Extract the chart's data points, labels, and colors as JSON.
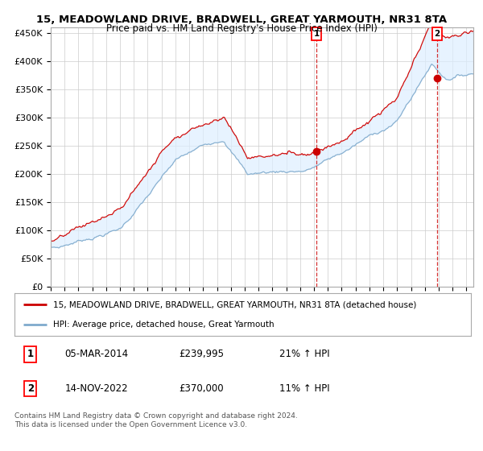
{
  "title": "15, MEADOWLAND DRIVE, BRADWELL, GREAT YARMOUTH, NR31 8TA",
  "subtitle": "Price paid vs. HM Land Registry's House Price Index (HPI)",
  "legend_line1": "15, MEADOWLAND DRIVE, BRADWELL, GREAT YARMOUTH, NR31 8TA (detached house)",
  "legend_line2": "HPI: Average price, detached house, Great Yarmouth",
  "annotation1_date": "05-MAR-2014",
  "annotation1_price": "£239,995",
  "annotation1_hpi": "21% ↑ HPI",
  "annotation1_year": 2014.17,
  "annotation1_value": 239995,
  "annotation2_date": "14-NOV-2022",
  "annotation2_price": "£370,000",
  "annotation2_hpi": "11% ↑ HPI",
  "annotation2_year": 2022.87,
  "annotation2_value": 370000,
  "copyright": "Contains HM Land Registry data © Crown copyright and database right 2024.\nThis data is licensed under the Open Government Licence v3.0.",
  "ylim": [
    0,
    460000
  ],
  "yticks": [
    0,
    50000,
    100000,
    150000,
    200000,
    250000,
    300000,
    350000,
    400000,
    450000
  ],
  "red_color": "#cc0000",
  "blue_color": "#7faacc",
  "fill_color": "#ddeeff",
  "background_color": "#ffffff",
  "grid_color": "#cccccc",
  "title_fontsize": 9.5,
  "subtitle_fontsize": 8.5
}
